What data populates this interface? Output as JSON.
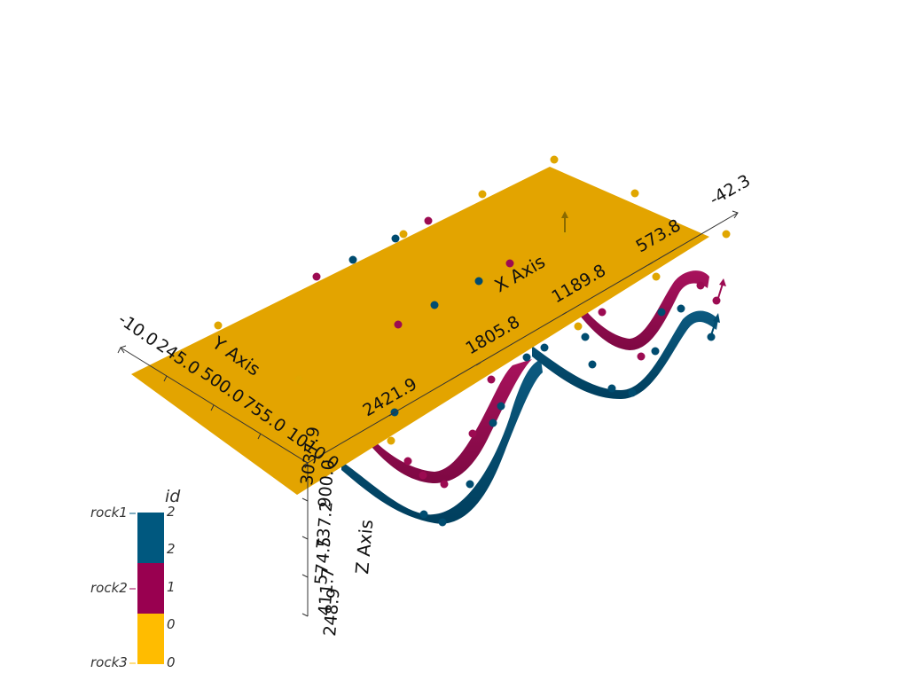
{
  "scene": {
    "background": "#ffffff",
    "axis_color": "#333333"
  },
  "axes": {
    "x": {
      "title": "X Axis",
      "ticks": [
        "-42.3",
        "573.8",
        "1189.8",
        "1805.8",
        "2421.9",
        "3037.9"
      ]
    },
    "y": {
      "title": "Y Axis",
      "ticks": [
        "-10.0",
        "245.0",
        "500.0",
        "755.0",
        "1010.0"
      ]
    },
    "z": {
      "title": "Z Axis",
      "ticks": [
        "900.0",
        "737.2",
        "574.5",
        "411.7",
        "248.9"
      ]
    }
  },
  "surfaces": [
    {
      "name": "rock3",
      "color": "#e3a400"
    },
    {
      "name": "rock2",
      "color": "#9c0b52"
    },
    {
      "name": "rock1",
      "color": "#004c70"
    }
  ],
  "legend": {
    "title": "id",
    "bands": [
      {
        "id": 2,
        "color": "#00587f"
      },
      {
        "id": 1,
        "color": "#990050"
      },
      {
        "id": 0,
        "color": "#ffbc00"
      }
    ],
    "value_labels": [
      "2",
      "2",
      "1",
      "0",
      "0"
    ],
    "rock_labels": [
      "rock1",
      "rock2",
      "rock3"
    ]
  },
  "points": {
    "colors": {
      "rock1": "#004c70",
      "rock2": "#9c0b52",
      "rock3": "#e0a600"
    }
  }
}
